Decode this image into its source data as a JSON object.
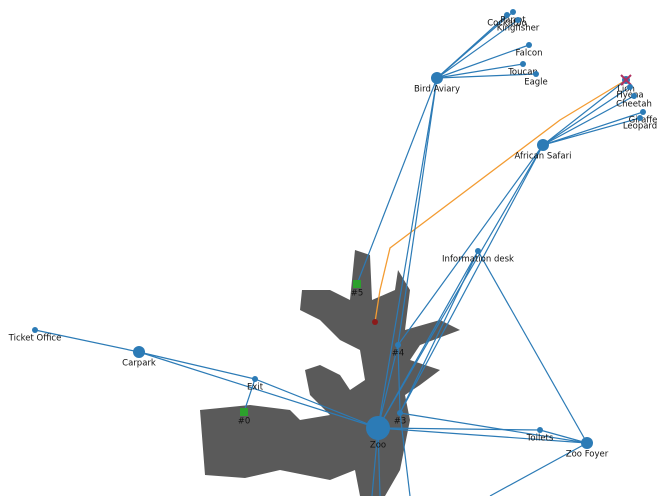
{
  "nodes": [
    {
      "label": "Parrot"
    },
    {
      "label": "Cockatoo"
    },
    {
      "label": "Kingfisher"
    },
    {
      "label": "Falcon"
    },
    {
      "label": "Toucan"
    },
    {
      "label": "Eagle"
    },
    {
      "label": "Bird Aviary"
    },
    {
      "label": "Lion"
    },
    {
      "label": "Hyena"
    },
    {
      "label": "Cheetah"
    },
    {
      "label": "Giraffe"
    },
    {
      "label": "Leopard"
    },
    {
      "label": "African Safari"
    },
    {
      "label": "Information desk"
    },
    {
      "label": "#5"
    },
    {
      "label": "#4"
    },
    {
      "label": "Ticket Office"
    },
    {
      "label": "Carpark"
    },
    {
      "label": "Exit"
    },
    {
      "label": "#0"
    },
    {
      "label": "Zoo"
    },
    {
      "label": "#3"
    },
    {
      "label": "Toilets"
    },
    {
      "label": "Zoo Foyer"
    }
  ]
}
